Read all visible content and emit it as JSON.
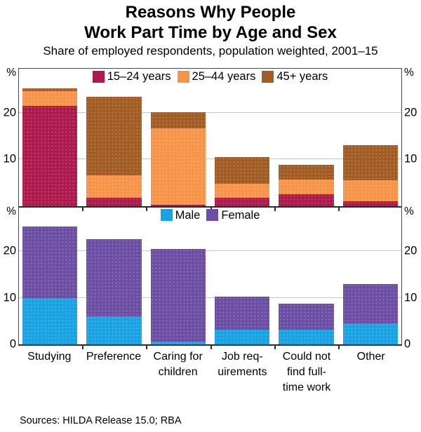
{
  "title_line1": "Reasons Why People",
  "title_line2": "Work Part Time by Age and Sex",
  "subtitle": "Share of employed respondents, population weighted, 2001–15",
  "source_note": "Sources: HILDA Release 15.0; RBA",
  "chart_data": {
    "type": "bar",
    "stacked": true,
    "grid": true,
    "categories": [
      "Studying",
      "Preference",
      "Caring for children",
      "Job requirements",
      "Could not find full-time work",
      "Other"
    ],
    "category_tick_lines": [
      [
        "Studying"
      ],
      [
        "Preference"
      ],
      [
        "Caring for",
        "children"
      ],
      [
        "Job req-",
        "uirements"
      ],
      [
        "Could not",
        "find full-",
        "time work"
      ],
      [
        "Other"
      ]
    ],
    "panels": [
      {
        "legend_position": "top-center",
        "unit_label": "%",
        "ylim": [
          0,
          29.5
        ],
        "gridlines": [
          10,
          20
        ],
        "yticks": [
          {
            "value": 20,
            "label": "20"
          },
          {
            "value": 10,
            "label": "10"
          }
        ],
        "series": [
          {
            "name": "15–24 years",
            "color": "#AD1A4D",
            "values": [
              21.5,
              1.7,
              0.3,
              1.8,
              2.5,
              1.0
            ]
          },
          {
            "name": "25–44 years",
            "color": "#F7944A",
            "values": [
              3.2,
              4.8,
              16.4,
              3.0,
              3.1,
              4.5
            ]
          },
          {
            "name": "45+ years",
            "color": "#A25C24",
            "values": [
              0.6,
              16.9,
              3.4,
              5.7,
              3.2,
              7.6
            ]
          }
        ]
      },
      {
        "legend_position": "top-center",
        "unit_label": "%",
        "ylim": [
          0,
          29.5
        ],
        "gridlines": [
          10,
          20
        ],
        "yticks": [
          {
            "value": 20,
            "label": "20"
          },
          {
            "value": 10,
            "label": "10"
          },
          {
            "value": 0,
            "label": "0"
          }
        ],
        "series": [
          {
            "name": "Male",
            "color": "#1BA2E2",
            "values": [
              10.0,
              6.1,
              0.6,
              3.1,
              3.2,
              4.6
            ]
          },
          {
            "name": "Female",
            "color": "#6C4EA4",
            "values": [
              15.3,
              16.6,
              19.9,
              7.2,
              5.5,
              8.4
            ]
          }
        ]
      }
    ]
  }
}
